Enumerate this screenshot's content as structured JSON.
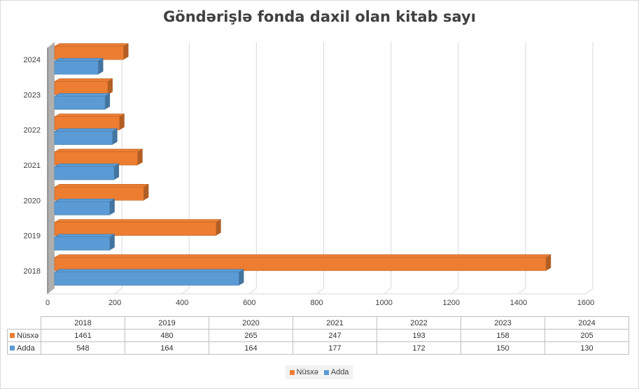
{
  "chart_data": {
    "type": "bar",
    "orientation": "horizontal",
    "title": "Göndərişlə fonda daxil olan kitab sayı",
    "categories": [
      "2018",
      "2019",
      "2020",
      "2021",
      "2022",
      "2023",
      "2024"
    ],
    "series": [
      {
        "name": "Nüsxə",
        "values": [
          1461,
          480,
          265,
          247,
          193,
          158,
          205
        ],
        "color": "#ed7d31"
      },
      {
        "name": "Adda",
        "values": [
          548,
          164,
          164,
          177,
          172,
          150,
          130
        ],
        "color": "#5b9bd5"
      }
    ],
    "xlim": [
      0,
      1600
    ],
    "xticks": [
      0,
      200,
      400,
      600,
      800,
      1000,
      1200,
      1400,
      1600
    ],
    "grid": true,
    "legend": "bottom",
    "data_table": true
  },
  "legend": {
    "items": [
      "Nüsxə",
      "Adda"
    ]
  }
}
